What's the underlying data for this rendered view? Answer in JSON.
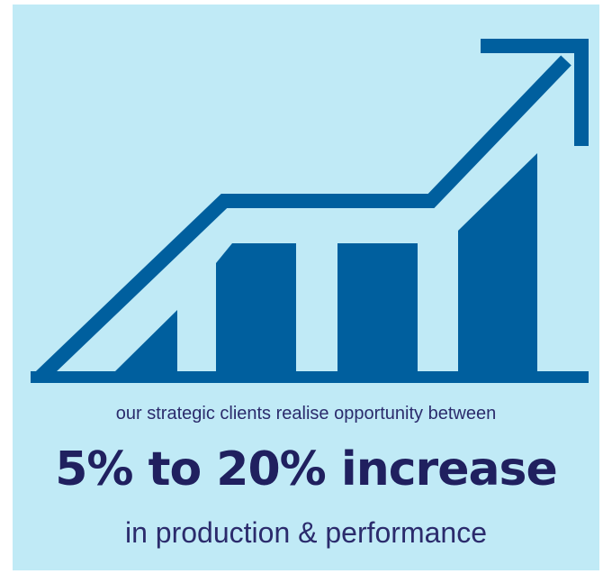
{
  "infographic": {
    "lead_text": "our strategic clients realise opportunity between",
    "headline": "5% to 20% increase",
    "subline": "in production & performance",
    "icon": "growth-chart-arrow-icon"
  },
  "colors": {
    "background": "#c0eaf6",
    "chart_blue": "#005f9e",
    "text_navy": "#20205f"
  }
}
